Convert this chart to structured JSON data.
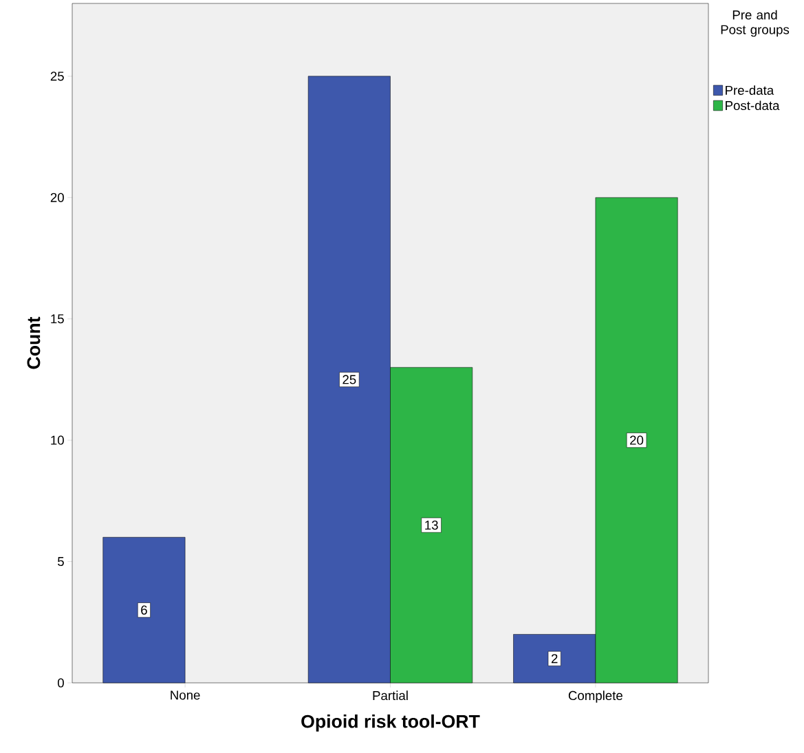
{
  "chart_data": {
    "type": "bar",
    "xlabel": "Opioid risk tool-ORT",
    "ylabel": "Count",
    "legend_title": "Pre and Post groups",
    "categories": [
      "None",
      "Partial",
      "Complete"
    ],
    "series": [
      {
        "name": "Pre-data",
        "color": "#3e58ac",
        "values": [
          6,
          25,
          2
        ]
      },
      {
        "name": "Post-data",
        "color": "#2db547",
        "values": [
          null,
          13,
          20
        ]
      }
    ],
    "ylim": [
      0,
      28
    ],
    "yticks": [
      0,
      5,
      10,
      15,
      20,
      25
    ],
    "data_labels": true,
    "grid": false,
    "legend": "top right"
  }
}
